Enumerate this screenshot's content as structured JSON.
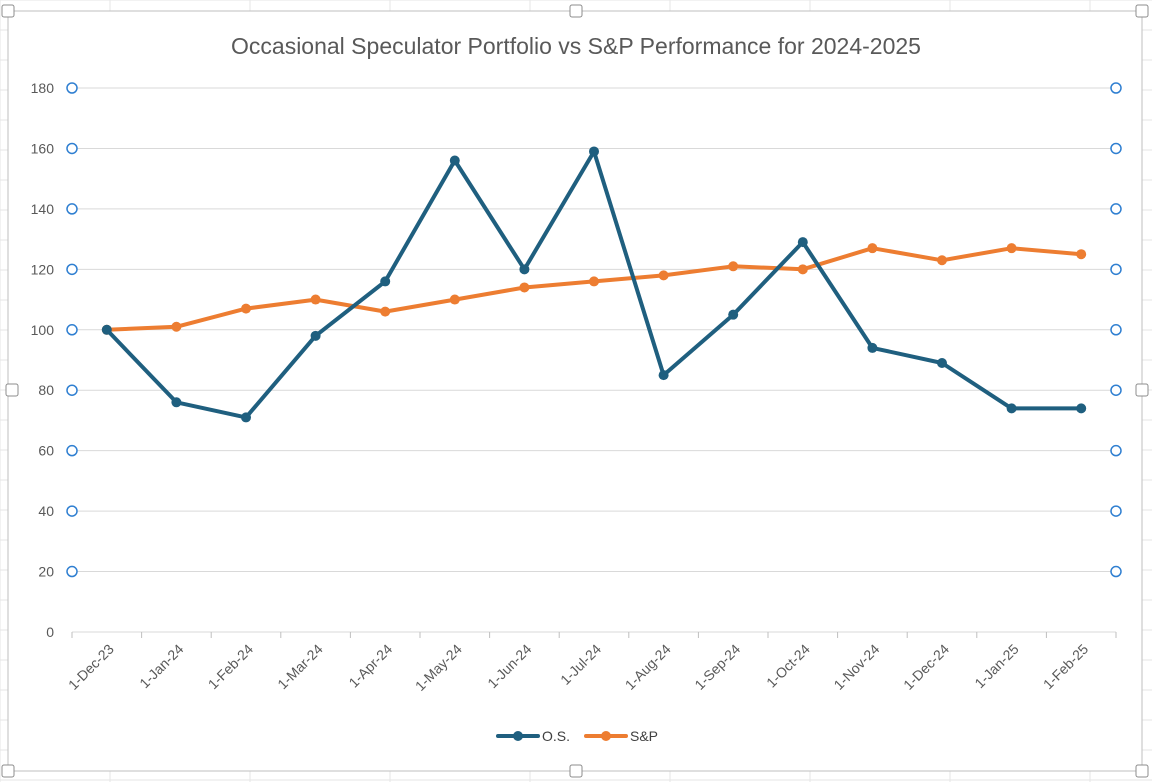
{
  "chart_data": {
    "type": "line",
    "title": "Occasional Speculator Portfolio vs S&P Performance for 2024-2025",
    "categories": [
      "1-Dec-23",
      "1-Jan-24",
      "1-Feb-24",
      "1-Mar-24",
      "1-Apr-24",
      "1-May-24",
      "1-Jun-24",
      "1-Jul-24",
      "1-Aug-24",
      "1-Sep-24",
      "1-Oct-24",
      "1-Nov-24",
      "1-Dec-24",
      "1-Jan-25",
      "1-Feb-25"
    ],
    "yticks": [
      "0",
      "20",
      "40",
      "60",
      "80",
      "100",
      "120",
      "140",
      "160",
      "180"
    ],
    "ylim": [
      0,
      180
    ],
    "grid": true,
    "legend_position": "bottom",
    "xlabel": "",
    "ylabel": "",
    "series": [
      {
        "name": "O.S.",
        "color": "#1f5f7f",
        "values": [
          100,
          76,
          71,
          98,
          116,
          156,
          120,
          159,
          85,
          105,
          129,
          94,
          89,
          74,
          74
        ]
      },
      {
        "name": "S&P",
        "color": "#ed7d31",
        "values": [
          100,
          101,
          107,
          110,
          106,
          110,
          114,
          116,
          118,
          121,
          120,
          127,
          123,
          127,
          125
        ]
      }
    ]
  }
}
